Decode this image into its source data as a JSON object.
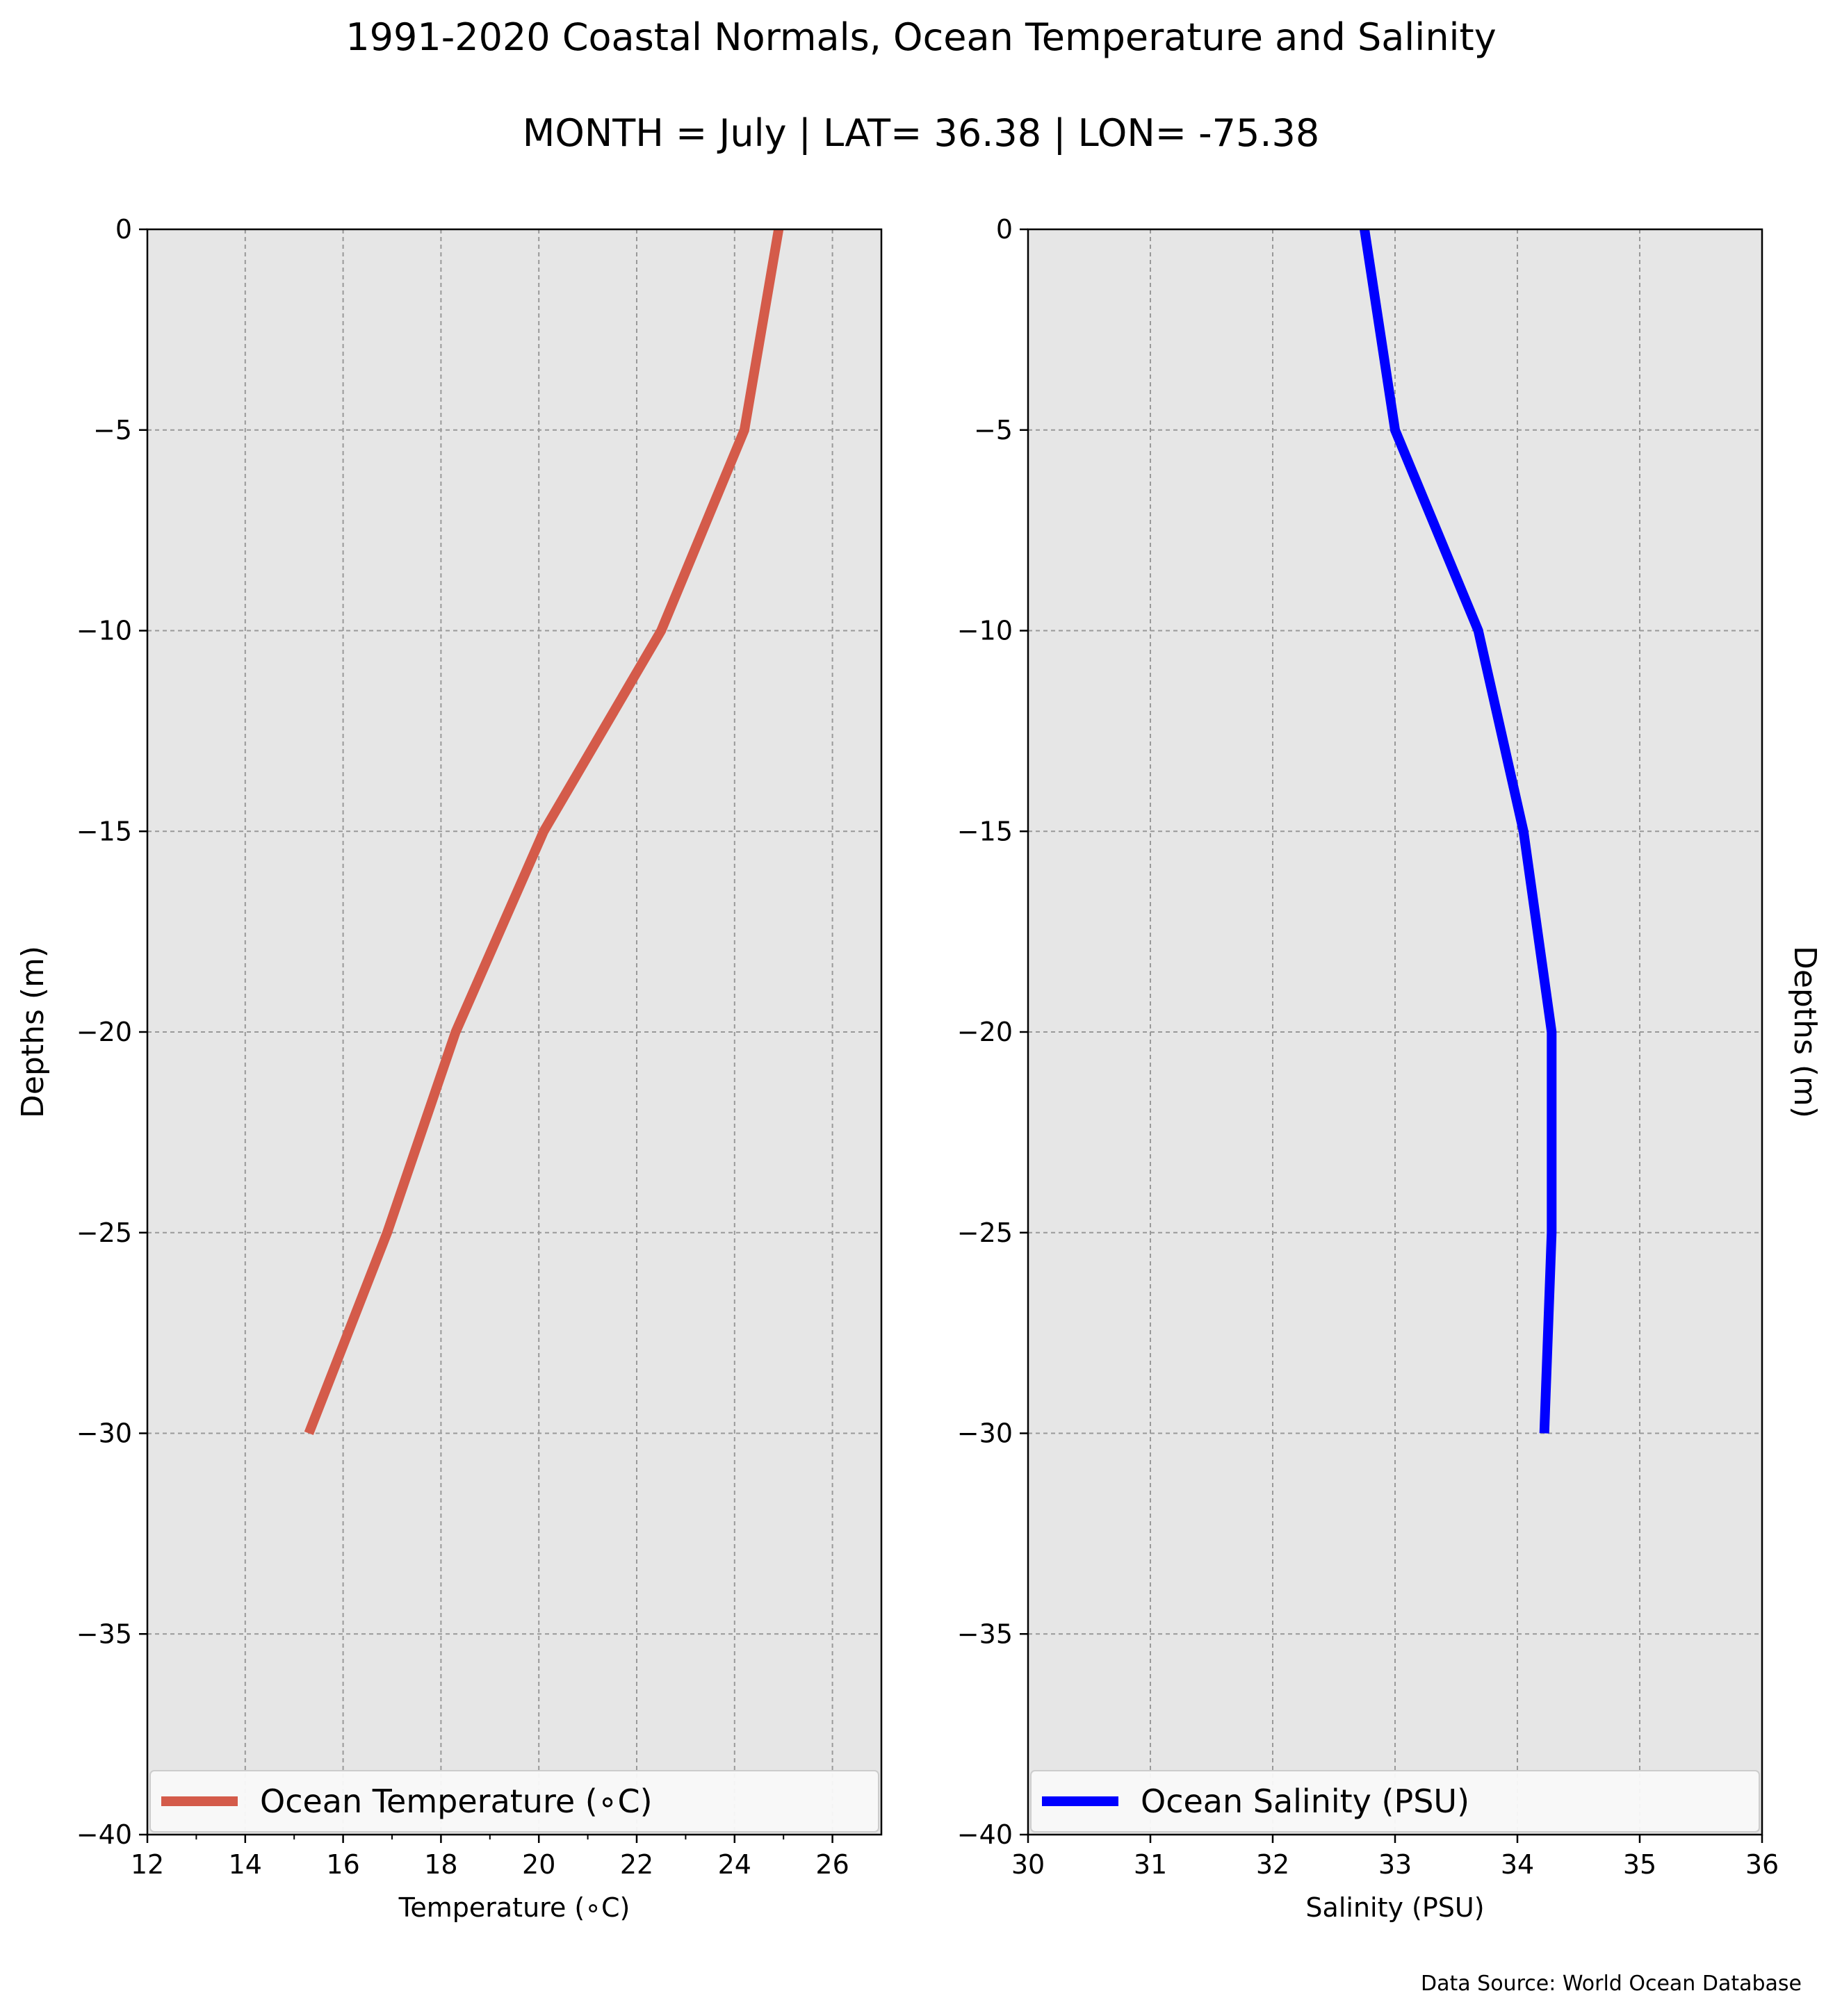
{
  "title": "1991-2020 Coastal Normals, Ocean Temperature and Salinity",
  "subtitle": "MONTH = July | LAT= 36.38 | LON= -75.38",
  "source": "Data Source: World Ocean Database",
  "colors": {
    "background": "#e6e6e6",
    "grid": "#999999",
    "temperature": "#d45b4a",
    "salinity": "#0000ff"
  },
  "chart_data": [
    {
      "type": "line",
      "xlabel": "Temperature (∘C)",
      "ylabel": "Depths (m)",
      "xlim": [
        12,
        27
      ],
      "ylim": [
        -40,
        0
      ],
      "xticks": [
        12,
        14,
        16,
        18,
        20,
        22,
        24,
        26
      ],
      "xtick_labels": [
        "12",
        "14",
        "16",
        "18",
        "20",
        "22",
        "24",
        "26"
      ],
      "yticks": [
        0,
        -5,
        -10,
        -15,
        -20,
        -25,
        -30,
        -35,
        -40
      ],
      "ytick_labels": [
        "0",
        "−5",
        "−10",
        "−15",
        "−20",
        "−25",
        "−30",
        "−35",
        "−40"
      ],
      "grid": true,
      "legend_position": "lower center",
      "series": [
        {
          "name": "Ocean Temperature (∘C)",
          "x": [
            24.9,
            24.2,
            22.5,
            20.1,
            18.3,
            16.9,
            15.3
          ],
          "y": [
            0,
            -5,
            -10,
            -15,
            -20,
            -25,
            -30
          ]
        }
      ]
    },
    {
      "type": "line",
      "xlabel": "Salinity (PSU)",
      "ylabel": "Depths (m)",
      "xlim": [
        30,
        36
      ],
      "ylim": [
        -40,
        0
      ],
      "xticks": [
        30,
        31,
        32,
        33,
        34,
        35,
        36
      ],
      "xtick_labels": [
        "30",
        "31",
        "32",
        "33",
        "34",
        "35",
        "36"
      ],
      "yticks": [
        0,
        -5,
        -10,
        -15,
        -20,
        -25,
        -30,
        -35,
        -40
      ],
      "ytick_labels": [
        "0",
        "−5",
        "−10",
        "−15",
        "−20",
        "−25",
        "−30",
        "−35",
        "−40"
      ],
      "grid": true,
      "legend_position": "lower center",
      "series": [
        {
          "name": "Ocean Salinity (PSU)",
          "x": [
            32.75,
            33.0,
            33.68,
            34.05,
            34.28,
            34.28,
            34.22
          ],
          "y": [
            0,
            -5,
            -10,
            -15,
            -20,
            -25,
            -30
          ]
        }
      ]
    }
  ]
}
